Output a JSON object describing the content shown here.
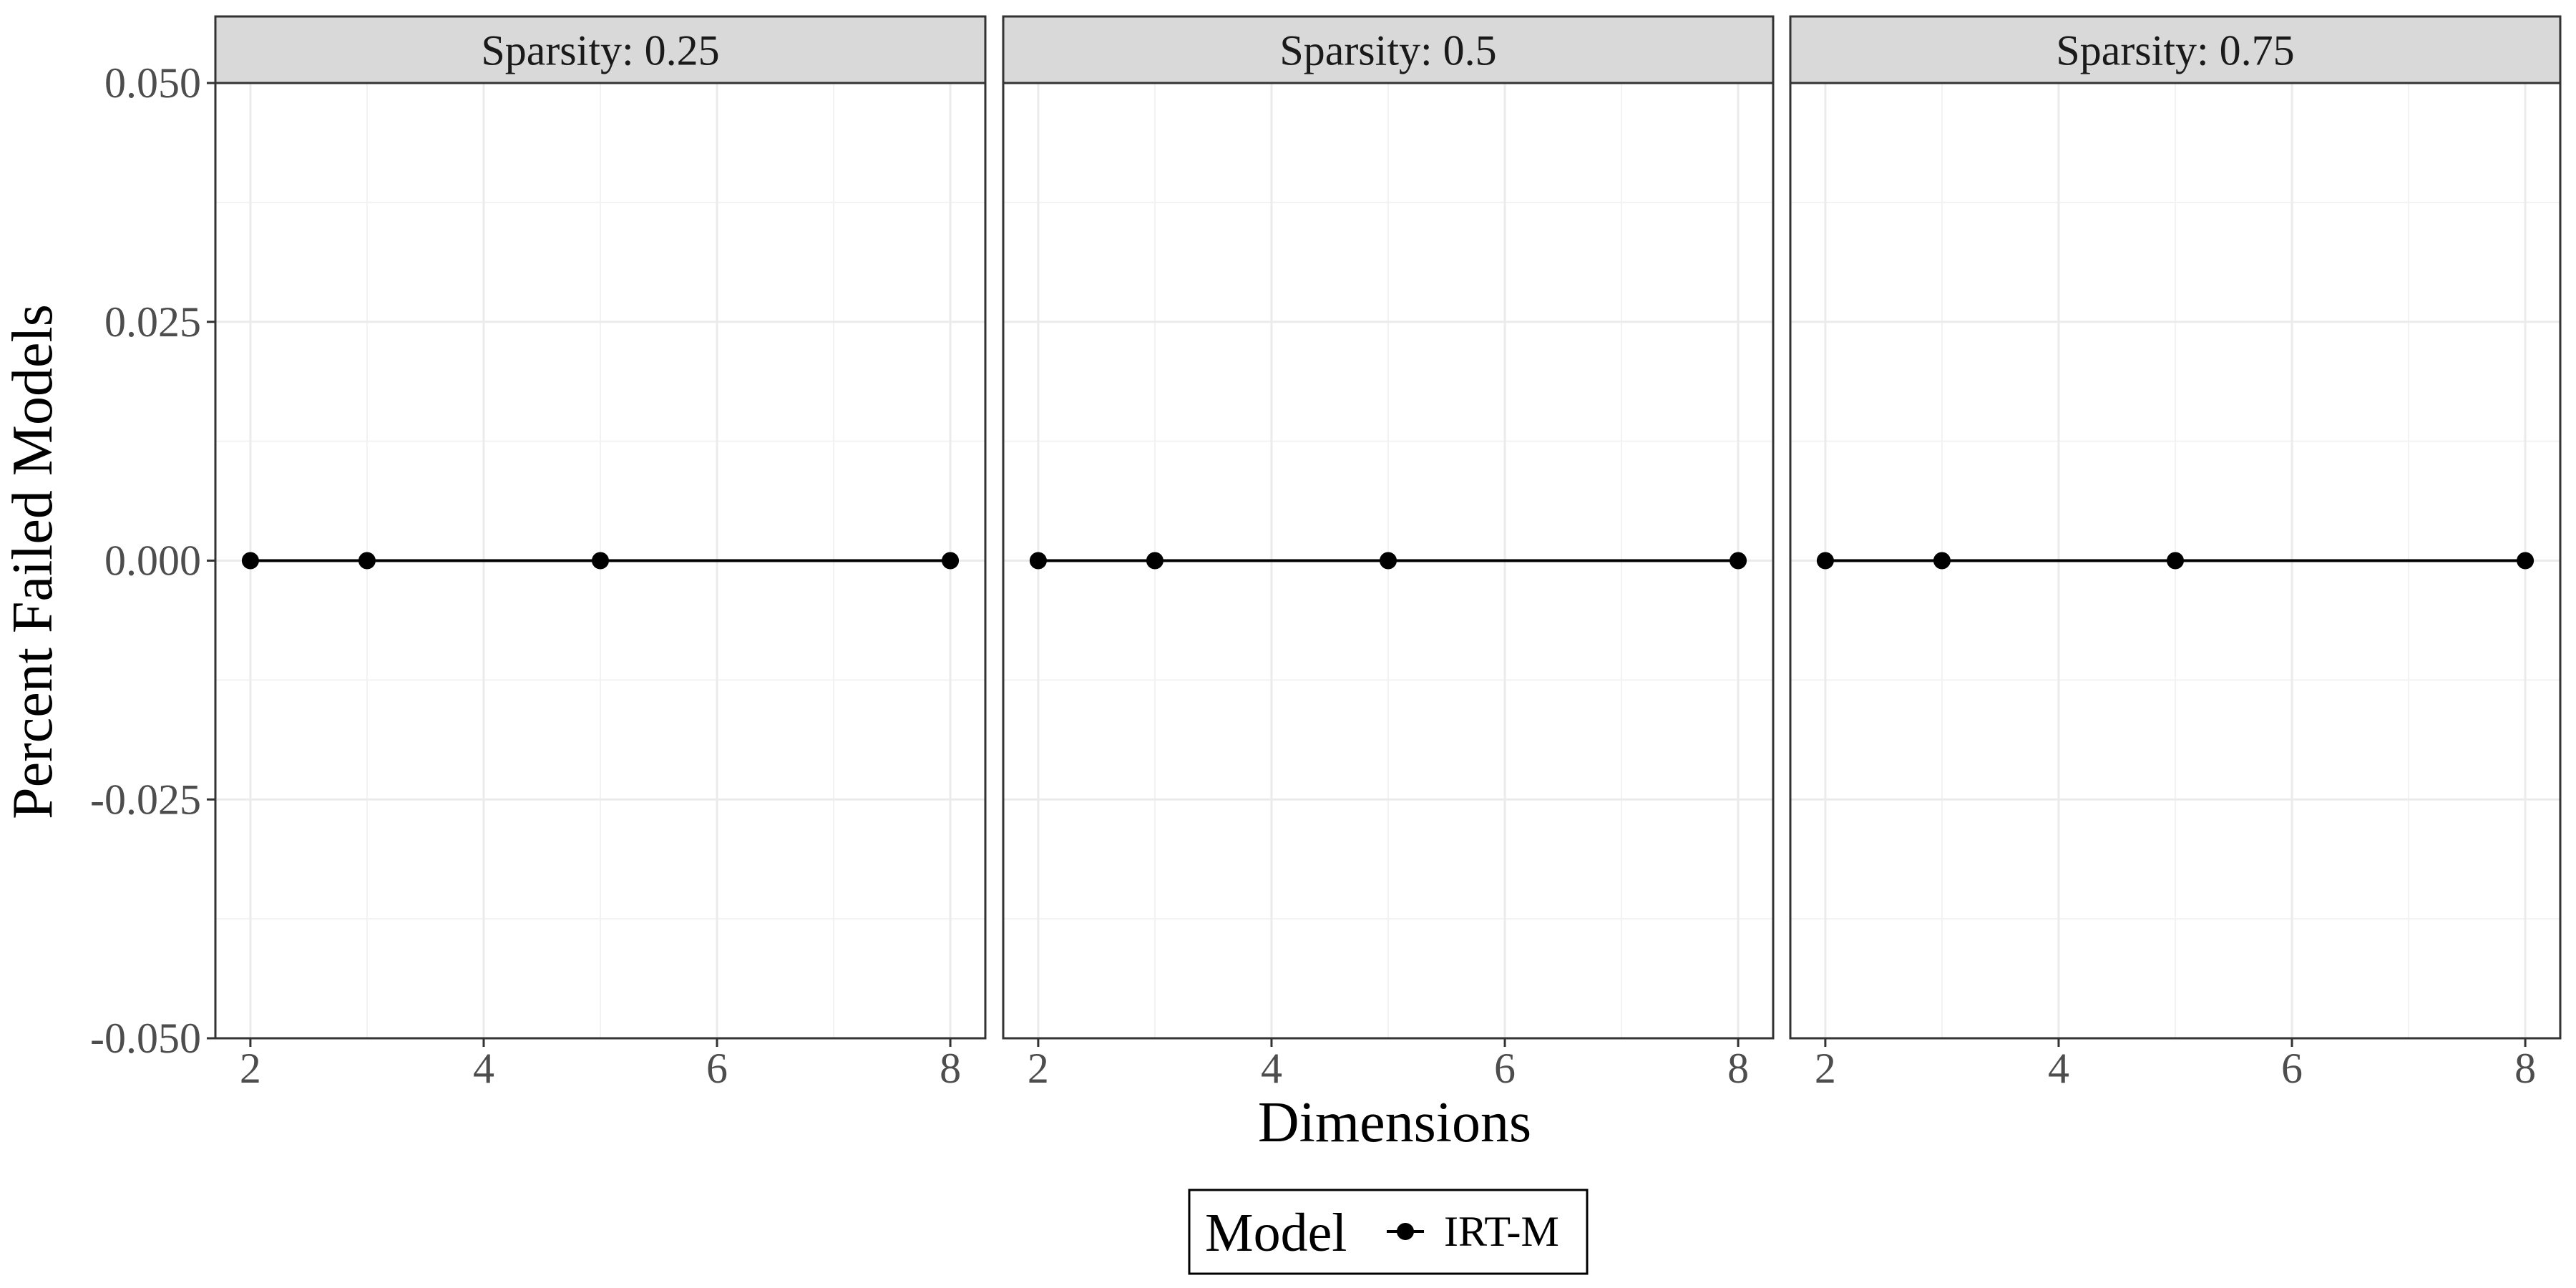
{
  "chart_data": {
    "type": "line",
    "xlabel": "Dimensions",
    "ylabel": "Percent Failed Models",
    "x_ticks": [
      "2",
      "4",
      "6",
      "8"
    ],
    "x_tick_values": [
      2,
      4,
      6,
      8
    ],
    "y_ticks": [
      "-0.050",
      "-0.025",
      "0.000",
      "0.025",
      "0.050"
    ],
    "y_tick_values": [
      -0.05,
      -0.025,
      0,
      0.025,
      0.05
    ],
    "xlim": [
      1.7,
      8.3
    ],
    "ylim": [
      -0.05,
      0.05
    ],
    "grid": true,
    "legend": {
      "title": "Model",
      "position": "bottom",
      "entries": [
        "IRT-M"
      ]
    },
    "line_color": "#000000",
    "strip_color": "#d9d9d9",
    "panels": [
      {
        "strip_label": "Sparsity: 0.25",
        "series": [
          {
            "name": "IRT-M",
            "x": [
              2,
              3,
              5,
              8
            ],
            "y": [
              0,
              0,
              0,
              0
            ]
          }
        ]
      },
      {
        "strip_label": "Sparsity: 0.5",
        "series": [
          {
            "name": "IRT-M",
            "x": [
              2,
              3,
              5,
              8
            ],
            "y": [
              0,
              0,
              0,
              0
            ]
          }
        ]
      },
      {
        "strip_label": "Sparsity: 0.75",
        "series": [
          {
            "name": "IRT-M",
            "x": [
              2,
              3,
              5,
              8
            ],
            "y": [
              0,
              0,
              0,
              0
            ]
          }
        ]
      }
    ]
  }
}
